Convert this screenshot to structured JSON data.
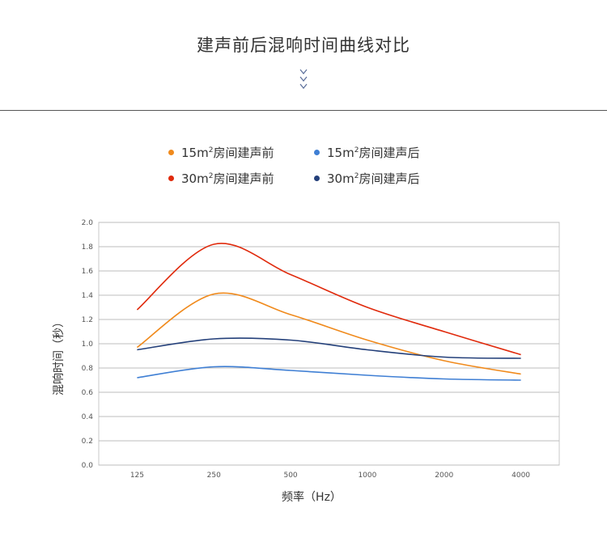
{
  "header": {
    "title": "建声前后混响时间曲线对比"
  },
  "chart_data": {
    "type": "line",
    "categories": [
      "125",
      "250",
      "500",
      "1000",
      "2000",
      "4000"
    ],
    "series": [
      {
        "name": "15m²房间建声前",
        "legend_label": "15m",
        "legend_sup": "2",
        "legend_suffix": "房间建声前",
        "color": "#f08a1c",
        "values": [
          0.97,
          1.41,
          1.24,
          1.03,
          0.86,
          0.75
        ]
      },
      {
        "name": "15m²房间建声后",
        "legend_label": "15m",
        "legend_sup": "2",
        "legend_suffix": "房间建声后",
        "color": "#3f7fd4",
        "values": [
          0.72,
          0.81,
          0.78,
          0.74,
          0.71,
          0.7
        ]
      },
      {
        "name": "30m²房间建声前",
        "legend_label": "30m",
        "legend_sup": "2",
        "legend_suffix": "房间建声前",
        "color": "#e02a0c",
        "values": [
          1.28,
          1.82,
          1.57,
          1.3,
          1.1,
          0.91
        ]
      },
      {
        "name": "30m²房间建声后",
        "legend_label": "30m",
        "legend_sup": "2",
        "legend_suffix": "房间建声后",
        "color": "#24407a",
        "values": [
          0.95,
          1.04,
          1.03,
          0.95,
          0.89,
          0.88
        ]
      }
    ],
    "xlabel": "频率（Hz）",
    "ylabel": "混响时间（秒）",
    "ylim": [
      0,
      2.0
    ],
    "yticks": [
      "0.0",
      "0.2",
      "0.4",
      "0.6",
      "0.8",
      "1.0",
      "1.2",
      "1.4",
      "1.6",
      "1.8",
      "2.0"
    ],
    "grid": true,
    "legend_position": "top"
  }
}
